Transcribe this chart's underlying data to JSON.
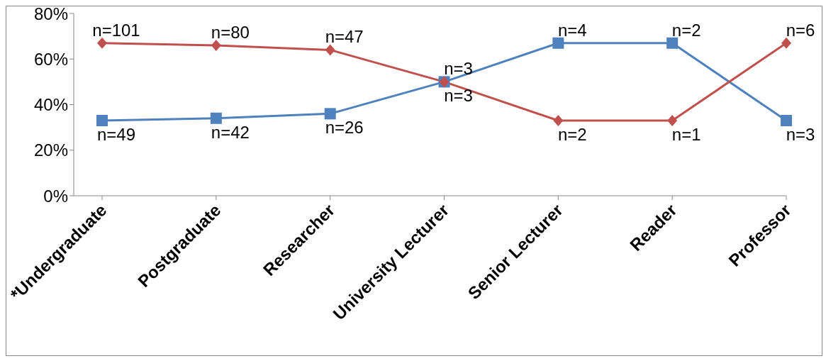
{
  "chart_data": {
    "type": "line",
    "categories": [
      "*Undergraduate",
      "Postgraduate",
      "Researcher",
      "University Lecturer",
      "Senior Lecturer",
      "Reader",
      "Professor"
    ],
    "series": [
      {
        "color": "#c0504d",
        "marker": "diamond",
        "values": [
          67,
          66,
          64,
          50,
          33,
          33,
          67
        ]
      },
      {
        "color": "#4f81bd",
        "marker": "square",
        "values": [
          33,
          34,
          36,
          50,
          67,
          67,
          33
        ]
      }
    ],
    "annotations": [
      {
        "text": "n=101",
        "x": "*Undergraduate",
        "y": 67
      },
      {
        "text": "n=80",
        "x": "Postgraduate",
        "y": 66
      },
      {
        "text": "n=47",
        "x": "Researcher",
        "y": 64
      },
      {
        "text": "n=3",
        "x": "University Lecturer",
        "y": 50
      },
      {
        "text": "n=2",
        "x": "Senior Lecturer",
        "y": 33
      },
      {
        "text": "n=1",
        "x": "Reader",
        "y": 33
      },
      {
        "text": "n=6",
        "x": "Professor",
        "y": 67
      },
      {
        "text": "n=49",
        "x": "*Undergraduate",
        "y": 33
      },
      {
        "text": "n=42",
        "x": "Postgraduate",
        "y": 34
      },
      {
        "text": "n=26",
        "x": "Researcher",
        "y": 36
      },
      {
        "text": "n=3",
        "x": "University Lecturer",
        "y": 50
      },
      {
        "text": "n=4",
        "x": "Senior Lecturer",
        "y": 67
      },
      {
        "text": "n=2",
        "x": "Reader",
        "y": 67
      },
      {
        "text": "n=3",
        "x": "Professor",
        "y": 33
      }
    ],
    "ylim": [
      0,
      80
    ],
    "yticks": [
      {
        "value": 0,
        "label": "0%"
      },
      {
        "value": 20,
        "label": "20%"
      },
      {
        "value": 40,
        "label": "40%"
      },
      {
        "value": 60,
        "label": "60%"
      },
      {
        "value": 80,
        "label": "80%"
      }
    ],
    "grid": false,
    "legend": false
  }
}
